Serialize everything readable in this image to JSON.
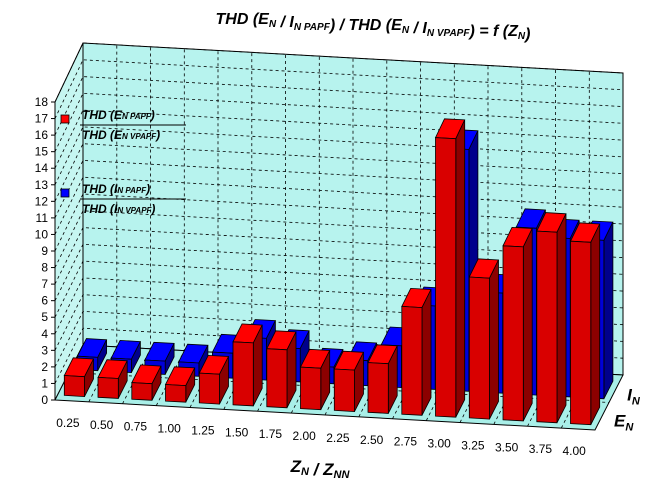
{
  "chart_data": {
    "type": "bar",
    "subtype": "3d-grouped-bar",
    "title_parts": [
      {
        "text": "THD (",
        "sub": false
      },
      {
        "text": "E",
        "sub": false
      },
      {
        "text": "N",
        "sub": true
      },
      {
        "text": " / ",
        "sub": false
      },
      {
        "text": "I",
        "sub": false
      },
      {
        "text": "N PAPF",
        "sub": true
      },
      {
        "text": ") / THD (",
        "sub": false
      },
      {
        "text": "E",
        "sub": false
      },
      {
        "text": "N",
        "sub": true
      },
      {
        "text": " / ",
        "sub": false
      },
      {
        "text": "I",
        "sub": false
      },
      {
        "text": "N VPAPF",
        "sub": true
      },
      {
        "text": ") = f (",
        "sub": false
      },
      {
        "text": "Z",
        "sub": false
      },
      {
        "text": "N",
        "sub": true
      },
      {
        "text": ")",
        "sub": false
      }
    ],
    "xlabel_parts": [
      {
        "text": "Z",
        "sub": false
      },
      {
        "text": "N",
        "sub": true
      },
      {
        "text": " / Z",
        "sub": false
      },
      {
        "text": "NN",
        "sub": true
      }
    ],
    "categories": [
      "0.25",
      "0.50",
      "0.75",
      "1.00",
      "1.25",
      "1.50",
      "1.75",
      "2.00",
      "2.25",
      "2.50",
      "2.75",
      "3.00",
      "3.25",
      "3.50",
      "3.75",
      "4.00"
    ],
    "ylim": [
      0,
      18
    ],
    "yticks": [
      "0",
      "1",
      "2",
      "3",
      "4",
      "5",
      "6",
      "7",
      "8",
      "9",
      "10",
      "11",
      "12",
      "13",
      "14",
      "15",
      "16",
      "17",
      "18"
    ],
    "grid": true,
    "series": [
      {
        "depth_label": "E",
        "depth_sub": "N",
        "color": "#ff0000",
        "legend_num": {
          "pre": "THD  (",
          "var": "E",
          "sub": "N PAPF",
          "post": ")"
        },
        "legend_den": {
          "pre": "THD  (",
          "var": "E",
          "sub": "N VPAPF",
          "post": ")"
        },
        "values": [
          1.2,
          1.2,
          1.0,
          1.0,
          1.8,
          3.8,
          3.5,
          2.5,
          2.5,
          3.0,
          6.5,
          16.8,
          8.5,
          10.5,
          11.5,
          11.0
        ]
      },
      {
        "depth_label": "I",
        "depth_sub": "N",
        "color": "#0000ff",
        "legend_num": {
          "pre": "THD  (",
          "var": "I",
          "sub": "N PAPF",
          "post": ")"
        },
        "legend_den": {
          "pre": "THD  (",
          "var": "I",
          "sub": "N VPAPF",
          "post": ")"
        },
        "values": [
          0.8,
          0.8,
          0.8,
          0.8,
          1.5,
          2.5,
          2.0,
          1.0,
          1.5,
          2.5,
          5.0,
          14.5,
          6.0,
          10.0,
          9.5,
          9.5
        ]
      }
    ]
  }
}
